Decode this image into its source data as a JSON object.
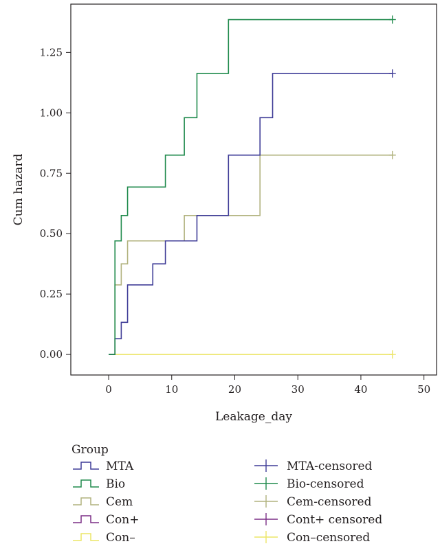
{
  "chart_data": {
    "type": "line",
    "step": true,
    "xlabel": "Leakage_day",
    "ylabel": "Cum hazard",
    "xlim": [
      -6,
      52
    ],
    "ylim": [
      -0.085,
      1.45
    ],
    "xticks": [
      0,
      10,
      20,
      30,
      40,
      50
    ],
    "xtick_labels": [
      "0",
      "10",
      "20",
      "30",
      "40",
      "50"
    ],
    "yticks": [
      0,
      0.25,
      0.5,
      0.75,
      1.0,
      1.25
    ],
    "ytick_labels": [
      "0.00",
      "0.25",
      "0.50",
      "0.75",
      "1.00",
      "1.25"
    ],
    "grid": false,
    "legend_title": "Group",
    "legend_position": "bottom",
    "series": [
      {
        "name": "MTA",
        "color": "#3f3c97",
        "x": [
          0,
          1,
          2,
          3,
          7,
          9,
          14,
          19,
          24,
          26,
          45
        ],
        "y": [
          0,
          0.065,
          0.133,
          0.288,
          0.375,
          0.47,
          0.575,
          0.825,
          0.98,
          1.163,
          1.163
        ],
        "censored_x": 45,
        "censored_y": 1.163,
        "censored_name": "MTA-censored"
      },
      {
        "name": "Bio",
        "color": "#1f8a4c",
        "x": [
          0,
          1,
          2,
          3,
          9,
          12,
          14,
          19,
          45
        ],
        "y": [
          0,
          0.47,
          0.575,
          0.693,
          0.825,
          0.98,
          1.163,
          1.386,
          1.386
        ],
        "censored_x": 45,
        "censored_y": 1.386,
        "censored_name": "Bio-censored"
      },
      {
        "name": "Cem",
        "color": "#b1b27e",
        "x": [
          0,
          1,
          2,
          3,
          12,
          24,
          45
        ],
        "y": [
          0,
          0.288,
          0.375,
          0.47,
          0.575,
          0.825,
          0.825
        ],
        "censored_x": 45,
        "censored_y": 0.825,
        "censored_name": "Cem-censored"
      },
      {
        "name": "Con+",
        "color": "#7b2f86",
        "x": [],
        "y": [],
        "censored_x": null,
        "censored_y": null,
        "censored_name": "Cont+ censored"
      },
      {
        "name": "Con–",
        "color": "#ece567",
        "x": [
          0,
          45
        ],
        "y": [
          0,
          0
        ],
        "censored_x": 45,
        "censored_y": 0,
        "censored_name": "Con–censored"
      }
    ]
  }
}
